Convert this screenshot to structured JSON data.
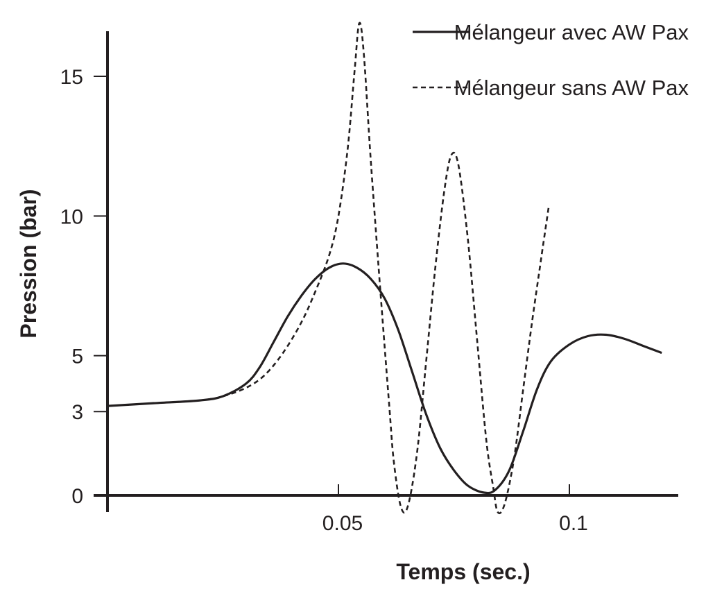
{
  "chart_data": {
    "type": "line",
    "title": "",
    "xlabel": "Temps (sec.)",
    "ylabel": "Pression (bar)",
    "xlim": [
      0,
      0.123
    ],
    "ylim": [
      -0.6,
      16.7
    ],
    "x_ticks": [
      {
        "value": 0.05,
        "label": "0.05"
      },
      {
        "value": 0.1,
        "label": "0.1"
      }
    ],
    "y_ticks": [
      {
        "value": 0,
        "label": "0"
      },
      {
        "value": 3,
        "label": "3"
      },
      {
        "value": 5,
        "label": "5"
      },
      {
        "value": 10,
        "label": "10"
      },
      {
        "value": 15,
        "label": "15"
      }
    ],
    "legend_position": "top-right",
    "series": [
      {
        "name": "Mélangeur avec AW Pax",
        "style": "solid",
        "color": "#231f20",
        "points": [
          [
            0,
            3.2
          ],
          [
            0.01,
            3.3
          ],
          [
            0.02,
            3.4
          ],
          [
            0.025,
            3.55
          ],
          [
            0.03,
            4.0
          ],
          [
            0.033,
            4.6
          ],
          [
            0.036,
            5.5
          ],
          [
            0.039,
            6.4
          ],
          [
            0.042,
            7.15
          ],
          [
            0.045,
            7.75
          ],
          [
            0.048,
            8.15
          ],
          [
            0.051,
            8.3
          ],
          [
            0.054,
            8.15
          ],
          [
            0.057,
            7.75
          ],
          [
            0.06,
            7.05
          ],
          [
            0.063,
            5.9
          ],
          [
            0.066,
            4.4
          ],
          [
            0.069,
            2.9
          ],
          [
            0.072,
            1.7
          ],
          [
            0.075,
            0.9
          ],
          [
            0.078,
            0.35
          ],
          [
            0.0815,
            0.1
          ],
          [
            0.084,
            0.2
          ],
          [
            0.087,
            0.9
          ],
          [
            0.09,
            2.3
          ],
          [
            0.093,
            3.8
          ],
          [
            0.096,
            4.8
          ],
          [
            0.1,
            5.4
          ],
          [
            0.104,
            5.7
          ],
          [
            0.108,
            5.75
          ],
          [
            0.112,
            5.6
          ],
          [
            0.116,
            5.35
          ],
          [
            0.12,
            5.1
          ]
        ]
      },
      {
        "name": "Mélangeur sans AW Pax",
        "style": "dashed",
        "color": "#231f20",
        "points": [
          [
            0,
            3.2
          ],
          [
            0.01,
            3.3
          ],
          [
            0.02,
            3.4
          ],
          [
            0.025,
            3.55
          ],
          [
            0.03,
            3.85
          ],
          [
            0.034,
            4.3
          ],
          [
            0.038,
            5.1
          ],
          [
            0.042,
            6.2
          ],
          [
            0.045,
            7.3
          ],
          [
            0.048,
            8.6
          ],
          [
            0.05,
            10.0
          ],
          [
            0.052,
            12.4
          ],
          [
            0.0535,
            15.2
          ],
          [
            0.0545,
            16.9
          ],
          [
            0.0555,
            15.8
          ],
          [
            0.057,
            12.0
          ],
          [
            0.059,
            7.5
          ],
          [
            0.061,
            3.2
          ],
          [
            0.062,
            1.2
          ],
          [
            0.0635,
            -0.4
          ],
          [
            0.065,
            -0.4
          ],
          [
            0.067,
            1.5
          ],
          [
            0.069,
            4.8
          ],
          [
            0.071,
            8.2
          ],
          [
            0.073,
            11.0
          ],
          [
            0.0745,
            12.2
          ],
          [
            0.076,
            11.8
          ],
          [
            0.078,
            9.2
          ],
          [
            0.08,
            5.6
          ],
          [
            0.082,
            2.0
          ],
          [
            0.0835,
            0.3
          ],
          [
            0.0845,
            -0.6
          ],
          [
            0.086,
            -0.3
          ],
          [
            0.088,
            1.3
          ],
          [
            0.09,
            3.8
          ],
          [
            0.092,
            6.3
          ],
          [
            0.094,
            8.6
          ],
          [
            0.0955,
            10.3
          ]
        ]
      }
    ]
  }
}
